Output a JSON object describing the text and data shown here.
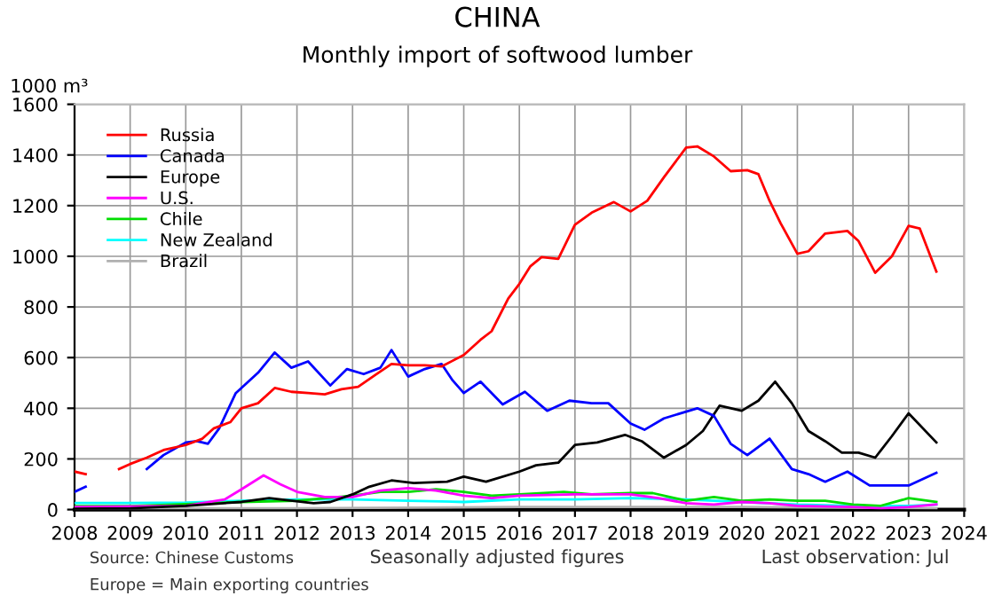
{
  "chart_data": {
    "type": "line",
    "title": "CHINA",
    "subtitle": "Monthly import of softwood lumber",
    "ylabel": "1000 m³",
    "annotations": [
      "Source: Chinese Customs",
      "Europe = Main exporting countries",
      "Seasonally adjusted figures",
      "Last observation: Jul"
    ],
    "xlim": [
      2008,
      2024
    ],
    "xticks": [
      2008,
      2009,
      2010,
      2011,
      2012,
      2013,
      2014,
      2015,
      2016,
      2017,
      2018,
      2019,
      2020,
      2021,
      2022,
      2023,
      2024
    ],
    "ylim": [
      0,
      1600
    ],
    "yticks": [
      0,
      200,
      400,
      600,
      800,
      1000,
      1200,
      1400,
      1600
    ],
    "grid": true,
    "legend": "top left",
    "series": [
      {
        "name": "Russia",
        "color": "#ff0000",
        "x": [
          2008.0,
          2008.2,
          2008.4,
          2008.8,
          2009.0,
          2009.3,
          2009.6,
          2010.0,
          2010.3,
          2010.5,
          2010.8,
          2011.0,
          2011.3,
          2011.6,
          2011.9,
          2012.2,
          2012.5,
          2012.8,
          2013.1,
          2013.4,
          2013.7,
          2014.0,
          2014.3,
          2014.6,
          2015.0,
          2015.3,
          2015.5,
          2015.8,
          2016.0,
          2016.2,
          2016.4,
          2016.7,
          2017.0,
          2017.3,
          2017.7,
          2018.0,
          2018.3,
          2018.6,
          2019.0,
          2019.2,
          2019.5,
          2019.8,
          2020.1,
          2020.3,
          2020.5,
          2020.7,
          2021.0,
          2021.2,
          2021.5,
          2021.9,
          2022.1,
          2022.4,
          2022.7,
          2023.0,
          2023.2,
          2023.5
        ],
        "values": [
          150,
          140,
          null,
          160,
          180,
          205,
          235,
          255,
          280,
          320,
          345,
          400,
          420,
          480,
          465,
          460,
          455,
          475,
          485,
          530,
          575,
          570,
          570,
          565,
          610,
          670,
          704,
          833,
          891,
          961,
          997,
          990,
          1125,
          1172,
          1214,
          1177,
          1219,
          1312,
          1429,
          1434,
          1394,
          1336,
          1340,
          1324,
          1219,
          1130,
          1010,
          1020,
          1090,
          1100,
          1060,
          935,
          1000,
          1120,
          1110,
          940
        ]
      },
      {
        "name": "Canada",
        "color": "#0000ff",
        "x": [
          2008.0,
          2008.2,
          2008.6,
          2009.3,
          2009.6,
          2010.0,
          2010.2,
          2010.4,
          2010.6,
          2010.9,
          2011.1,
          2011.3,
          2011.6,
          2011.9,
          2012.2,
          2012.6,
          2012.9,
          2013.2,
          2013.5,
          2013.7,
          2014.0,
          2014.3,
          2014.6,
          2014.8,
          2015.0,
          2015.3,
          2015.7,
          2016.1,
          2016.5,
          2016.9,
          2017.3,
          2017.6,
          2018.0,
          2018.25,
          2018.6,
          2019.2,
          2019.5,
          2019.8,
          2020.1,
          2020.5,
          2020.9,
          2021.2,
          2021.5,
          2021.9,
          2022.3,
          2022.6,
          2023.0,
          2023.5
        ],
        "values": [
          70,
          90,
          null,
          160,
          215,
          265,
          270,
          260,
          320,
          460,
          500,
          540,
          620,
          560,
          585,
          490,
          555,
          535,
          560,
          630,
          525,
          555,
          575,
          510,
          460,
          505,
          415,
          465,
          390,
          430,
          420,
          420,
          340,
          315,
          360,
          400,
          370,
          260,
          215,
          280,
          160,
          140,
          110,
          150,
          95,
          95,
          95,
          145
        ]
      },
      {
        "name": "Europe",
        "color": "#000000",
        "x": [
          2008.0,
          2009.0,
          2010.0,
          2011.0,
          2011.5,
          2012.3,
          2012.6,
          2013.0,
          2013.3,
          2013.7,
          2014.1,
          2014.7,
          2015.0,
          2015.4,
          2016.0,
          2016.3,
          2016.7,
          2017.0,
          2017.4,
          2017.9,
          2018.2,
          2018.6,
          2019.0,
          2019.3,
          2019.6,
          2020.0,
          2020.3,
          2020.6,
          2020.9,
          2021.2,
          2021.5,
          2021.8,
          2022.1,
          2022.4,
          2022.7,
          2023.0,
          2023.5
        ],
        "values": [
          3,
          5,
          15,
          30,
          45,
          25,
          30,
          60,
          90,
          115,
          105,
          110,
          130,
          110,
          150,
          175,
          185,
          255,
          265,
          295,
          270,
          205,
          255,
          310,
          410,
          390,
          430,
          505,
          420,
          310,
          270,
          225,
          225,
          205,
          290,
          380,
          265
        ]
      },
      {
        "name": "U.S.",
        "color": "#ff00ff",
        "x": [
          2008.0,
          2010.0,
          2010.7,
          2011.0,
          2011.4,
          2011.7,
          2012.0,
          2012.5,
          2013.0,
          2013.5,
          2014.0,
          2014.5,
          2015.0,
          2015.5,
          2016.0,
          2017.0,
          2018.0,
          2018.5,
          2019.0,
          2019.5,
          2020.0,
          2020.5,
          2021.0,
          2022.0,
          2022.5,
          2023.0,
          2023.5
        ],
        "values": [
          10,
          15,
          40,
          80,
          135,
          100,
          70,
          50,
          50,
          75,
          85,
          75,
          55,
          45,
          55,
          60,
          60,
          45,
          25,
          20,
          30,
          25,
          15,
          10,
          5,
          10,
          20
        ]
      },
      {
        "name": "Chile",
        "color": "#00dd00",
        "x": [
          2008.0,
          2009.0,
          2010.0,
          2011.0,
          2012.0,
          2013.0,
          2013.5,
          2014.0,
          2014.5,
          2015.0,
          2015.5,
          2016.0,
          2016.8,
          2017.3,
          2018.0,
          2018.4,
          2019.0,
          2019.5,
          2020.0,
          2020.5,
          2021.0,
          2021.5,
          2022.0,
          2022.5,
          2023.0,
          2023.5
        ],
        "values": [
          14,
          14,
          22,
          30,
          35,
          55,
          70,
          70,
          80,
          70,
          55,
          60,
          70,
          60,
          65,
          65,
          35,
          50,
          35,
          40,
          35,
          35,
          20,
          15,
          45,
          30
        ]
      },
      {
        "name": "New Zealand",
        "color": "#00ffff",
        "x": [
          2008.0,
          2009.0,
          2010.0,
          2011.0,
          2012.0,
          2013.0,
          2014.0,
          2015.0,
          2016.0,
          2017.0,
          2018.0,
          2019.0,
          2020.0,
          2021.0,
          2022.0,
          2023.0,
          2023.5
        ],
        "values": [
          26,
          26,
          28,
          35,
          40,
          40,
          35,
          30,
          40,
          40,
          45,
          40,
          30,
          20,
          15,
          15,
          20
        ]
      },
      {
        "name": "Brazil",
        "color": "#b0b0b0",
        "x": [
          2008.0,
          2012.0,
          2016.0,
          2020.0,
          2023.5
        ],
        "values": [
          5,
          5,
          10,
          10,
          5
        ]
      }
    ]
  }
}
